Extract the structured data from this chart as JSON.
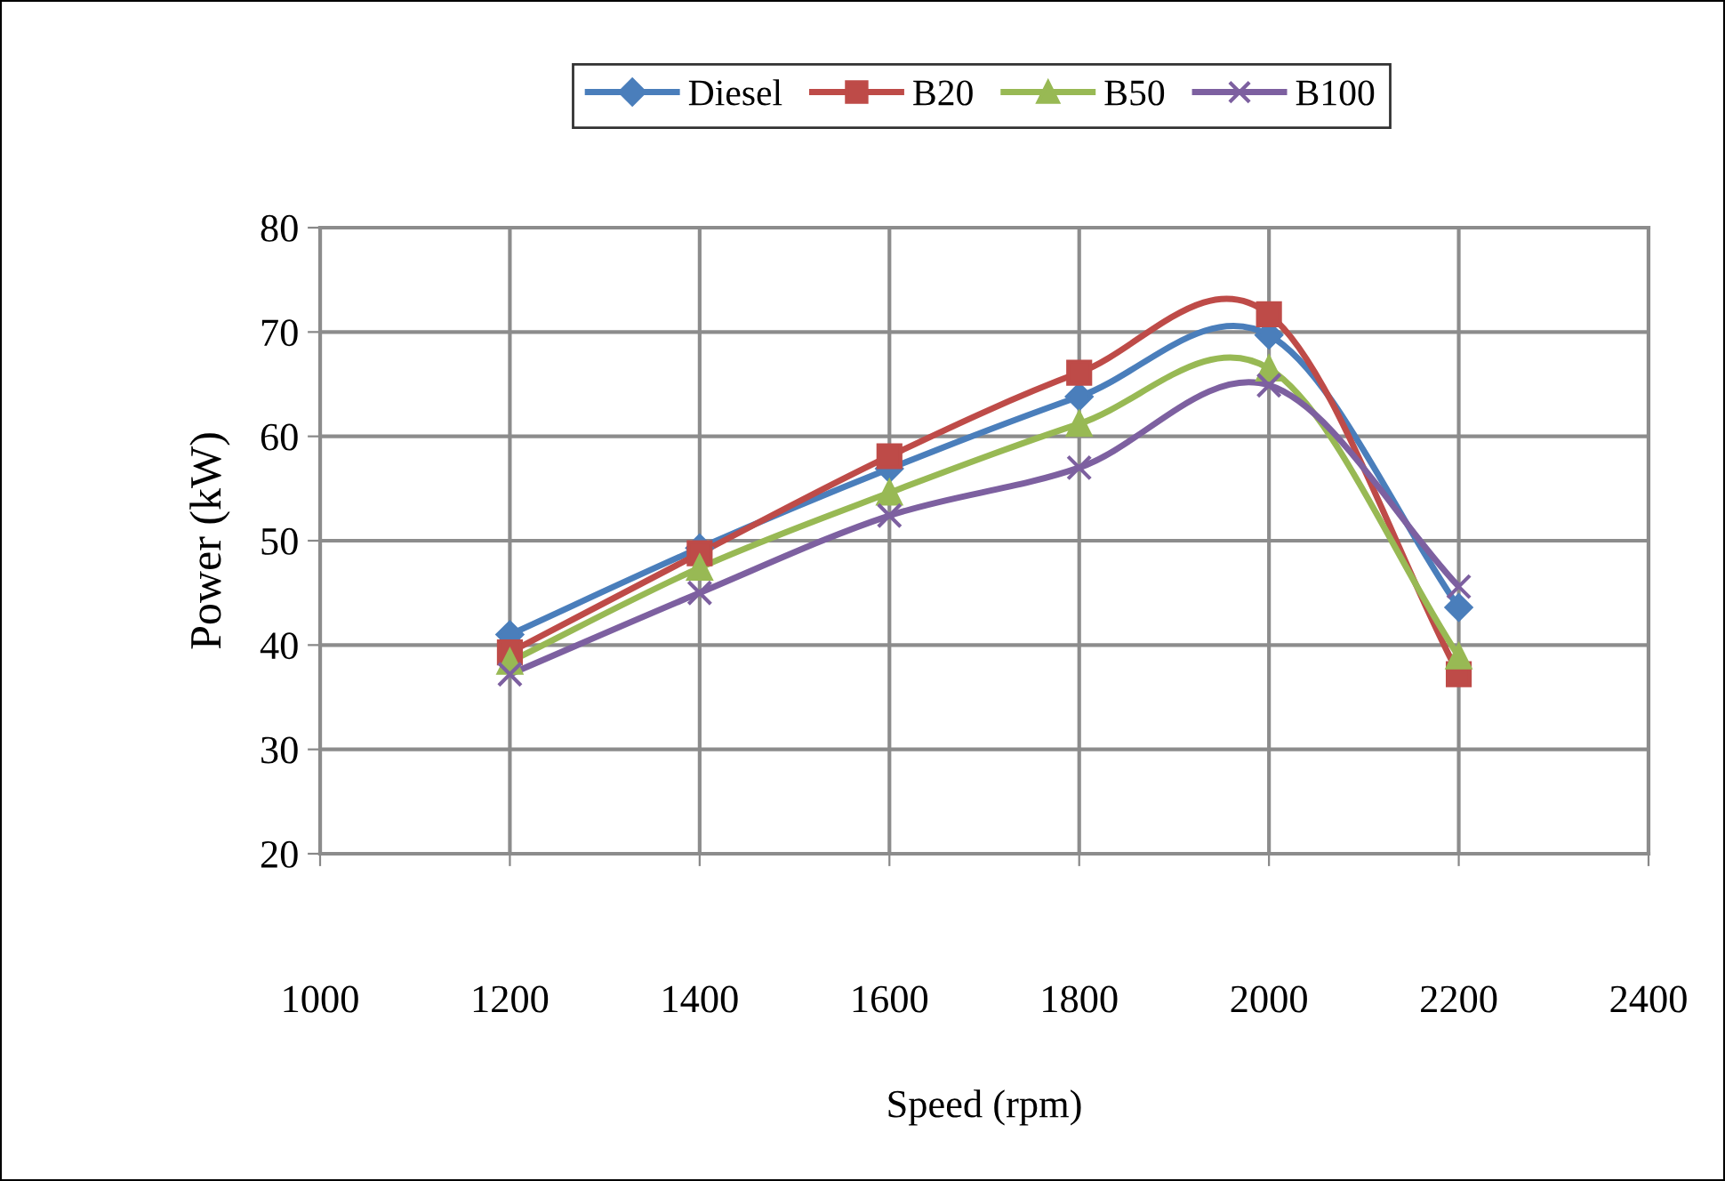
{
  "chart_data": {
    "type": "line",
    "xlabel": "Speed (rpm)",
    "ylabel": "Power (kW)",
    "x": [
      1200,
      1400,
      1600,
      1800,
      2000,
      2200
    ],
    "series": [
      {
        "name": "Diesel",
        "color": "#4a7ebb",
        "marker": "diamond",
        "values": [
          41.0,
          49.3,
          56.9,
          63.8,
          69.7,
          43.6
        ]
      },
      {
        "name": "B20",
        "color": "#be4b48",
        "marker": "square",
        "values": [
          39.3,
          48.8,
          58.1,
          66.1,
          71.7,
          37.2
        ]
      },
      {
        "name": "B50",
        "color": "#98b954",
        "marker": "triangle",
        "values": [
          38.4,
          47.4,
          54.6,
          61.2,
          66.5,
          38.9
        ]
      },
      {
        "name": "B100",
        "color": "#7d60a0",
        "marker": "cross",
        "values": [
          37.2,
          45.0,
          52.4,
          57.0,
          64.9,
          45.6
        ]
      }
    ],
    "xlim": [
      1000,
      2400
    ],
    "xticks": [
      1000,
      1200,
      1400,
      1600,
      1800,
      2000,
      2200,
      2400
    ],
    "ylim": [
      20,
      80
    ],
    "yticks": [
      20,
      30,
      40,
      50,
      60,
      70,
      80
    ],
    "grid": true,
    "legend": "top",
    "line_style": "solid"
  }
}
